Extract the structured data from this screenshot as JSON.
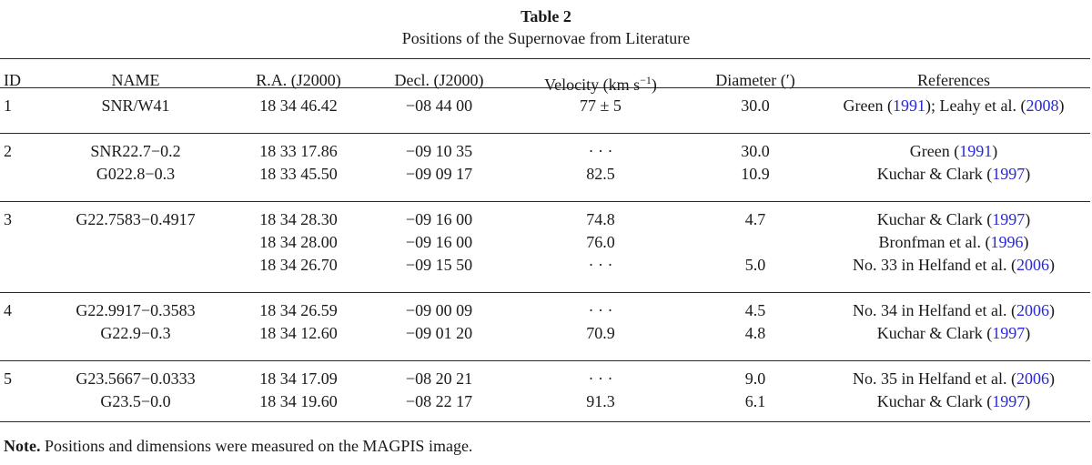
{
  "table": {
    "title": "Table 2",
    "subtitle": "Positions of the Supernovae from Literature",
    "headers": {
      "id": "ID",
      "name": "NAME",
      "ra": "R.A. (J2000)",
      "dec": "Decl. (J2000)",
      "velocity_prefix": "Velocity (km s",
      "velocity_exp": "−1",
      "velocity_suffix": ")",
      "diameter": "Diameter (′)",
      "references": "References"
    },
    "rows": [
      {
        "id": "1",
        "name": "SNR/W41",
        "ra": "18 34 46.42",
        "dec": "−08 44 00",
        "velocity": "77 ± 5",
        "diameter": "30.0",
        "ref": {
          "pre": "Green (",
          "y1": "1991",
          "mid": "); Leahy et al. (",
          "y2": "2008",
          "post": ")"
        }
      },
      {
        "id": "2",
        "name": "SNR22.7−0.2",
        "ra": "18 33 17.86",
        "dec": "−09 10 35",
        "velocity": "· · ·",
        "diameter": "30.0",
        "ref": {
          "pre": "Green (",
          "y1": "1991",
          "post": ")"
        }
      },
      {
        "id": "",
        "name": "G022.8−0.3",
        "ra": "18 33 45.50",
        "dec": "−09 09 17",
        "velocity": "82.5",
        "diameter": "10.9",
        "ref": {
          "pre": "Kuchar & Clark (",
          "y1": "1997",
          "post": ")"
        }
      },
      {
        "id": "3",
        "name": "G22.7583−0.4917",
        "ra": "18 34 28.30",
        "dec": "−09 16 00",
        "velocity": "74.8",
        "diameter": "4.7",
        "ref": {
          "pre": "Kuchar & Clark (",
          "y1": "1997",
          "post": ")"
        }
      },
      {
        "id": "",
        "name": "",
        "ra": "18 34 28.00",
        "dec": "−09 16 00",
        "velocity": "76.0",
        "diameter": "",
        "ref": {
          "pre": "Bronfman et al. (",
          "y1": "1996",
          "post": ")"
        }
      },
      {
        "id": "",
        "name": "",
        "ra": "18 34 26.70",
        "dec": "−09 15 50",
        "velocity": "· · ·",
        "diameter": "5.0",
        "ref": {
          "pre": "No. 33 in Helfand et al. (",
          "y1": "2006",
          "post": ")"
        }
      },
      {
        "id": "4",
        "name": "G22.9917−0.3583",
        "ra": "18 34 26.59",
        "dec": "−09 00 09",
        "velocity": "· · ·",
        "diameter": "4.5",
        "ref": {
          "pre": "No. 34 in Helfand et al. (",
          "y1": "2006",
          "post": ")"
        }
      },
      {
        "id": "",
        "name": "G22.9−0.3",
        "ra": "18 34 12.60",
        "dec": "−09 01 20",
        "velocity": "70.9",
        "diameter": "4.8",
        "ref": {
          "pre": "Kuchar & Clark (",
          "y1": "1997",
          "post": ")"
        }
      },
      {
        "id": "5",
        "name": "G23.5667−0.0333",
        "ra": "18 34 17.09",
        "dec": "−08 20 21",
        "velocity": "· · ·",
        "diameter": "9.0",
        "ref": {
          "pre": "No. 35 in Helfand et al. (",
          "y1": "2006",
          "post": ")"
        }
      },
      {
        "id": "",
        "name": "G23.5−0.0",
        "ra": "18 34 19.60",
        "dec": "−08 22 17",
        "velocity": "91.3",
        "diameter": "6.1",
        "ref": {
          "pre": "Kuchar & Clark (",
          "y1": "1997",
          "post": ")"
        }
      }
    ],
    "note_label": "Note.",
    "note_text": " Positions and dimensions were measured on the MAGPIS image."
  },
  "colors": {
    "link": "#2828d8",
    "rule": "#2a2a2a"
  }
}
